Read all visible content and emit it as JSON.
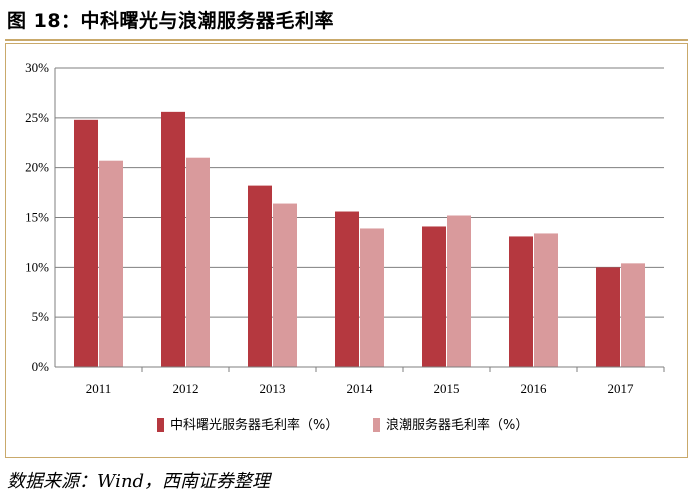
{
  "title": "图 18：中科曙光与浪潮服务器毛利率",
  "source": "数据来源：Wind，西南证券整理",
  "chart_data": {
    "type": "bar",
    "title": "",
    "xlabel": "",
    "ylabel": "",
    "categories": [
      "2011",
      "2012",
      "2013",
      "2014",
      "2015",
      "2016",
      "2017"
    ],
    "y_ticks": [
      "0%",
      "5%",
      "10%",
      "15%",
      "20%",
      "25%",
      "30%"
    ],
    "ylim": [
      0,
      30
    ],
    "grid": true,
    "legend_position": "bottom",
    "series": [
      {
        "name": "中科曙光服务器毛利率（%）",
        "color": "#b5383f",
        "values": [
          24.8,
          25.6,
          18.2,
          15.6,
          14.1,
          13.1,
          10.0
        ]
      },
      {
        "name": "浪潮服务器毛利率（%）",
        "color": "#d99a9c",
        "values": [
          20.7,
          21.0,
          16.4,
          13.9,
          15.2,
          13.4,
          10.4
        ]
      }
    ]
  }
}
